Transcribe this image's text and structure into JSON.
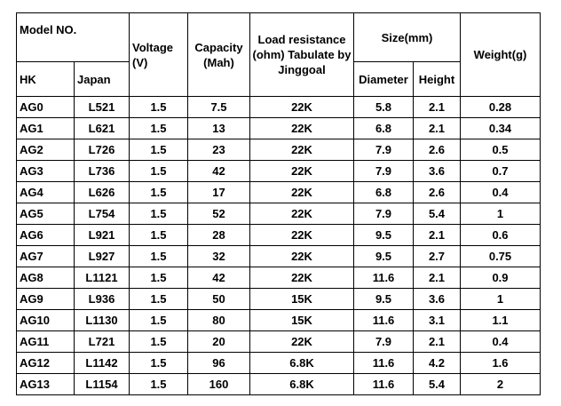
{
  "table": {
    "headers": {
      "model_no": "Model NO.",
      "hk": "HK",
      "japan": "Japan",
      "voltage": "Voltage (V)",
      "capacity": "Capacity (Mah)",
      "load_resistance": "Load resistance (ohm) Tabulate by Jinggoal",
      "size": "Size(mm)",
      "diameter": "Diameter",
      "height": "Height",
      "weight": "Weight(g)"
    },
    "rows": [
      [
        "AG0",
        "L521",
        "1.5",
        "7.5",
        "22K",
        "5.8",
        "2.1",
        "0.28"
      ],
      [
        "AG1",
        "L621",
        "1.5",
        "13",
        "22K",
        "6.8",
        "2.1",
        "0.34"
      ],
      [
        "AG2",
        "L726",
        "1.5",
        "23",
        "22K",
        "7.9",
        "2.6",
        "0.5"
      ],
      [
        "AG3",
        "L736",
        "1.5",
        "42",
        "22K",
        "7.9",
        "3.6",
        "0.7"
      ],
      [
        "AG4",
        "L626",
        "1.5",
        "17",
        "22K",
        "6.8",
        "2.6",
        "0.4"
      ],
      [
        "AG5",
        "L754",
        "1.5",
        "52",
        "22K",
        "7.9",
        "5.4",
        "1"
      ],
      [
        "AG6",
        "L921",
        "1.5",
        "28",
        "22K",
        "9.5",
        "2.1",
        "0.6"
      ],
      [
        "AG7",
        "L927",
        "1.5",
        "32",
        "22K",
        "9.5",
        "2.7",
        "0.75"
      ],
      [
        "AG8",
        "L1121",
        "1.5",
        "42",
        "22K",
        "11.6",
        "2.1",
        "0.9"
      ],
      [
        "AG9",
        "L936",
        "1.5",
        "50",
        "15K",
        "9.5",
        "3.6",
        "1"
      ],
      [
        "AG10",
        "L1130",
        "1.5",
        "80",
        "15K",
        "11.6",
        "3.1",
        "1.1"
      ],
      [
        "AG11",
        "L721",
        "1.5",
        "20",
        "22K",
        "7.9",
        "2.1",
        "0.4"
      ],
      [
        "AG12",
        "L1142",
        "1.5",
        "96",
        "6.8K",
        "11.6",
        "4.2",
        "1.6"
      ],
      [
        "AG13",
        "L1154",
        "1.5",
        "160",
        "6.8K",
        "11.6",
        "5.4",
        "2"
      ]
    ]
  }
}
